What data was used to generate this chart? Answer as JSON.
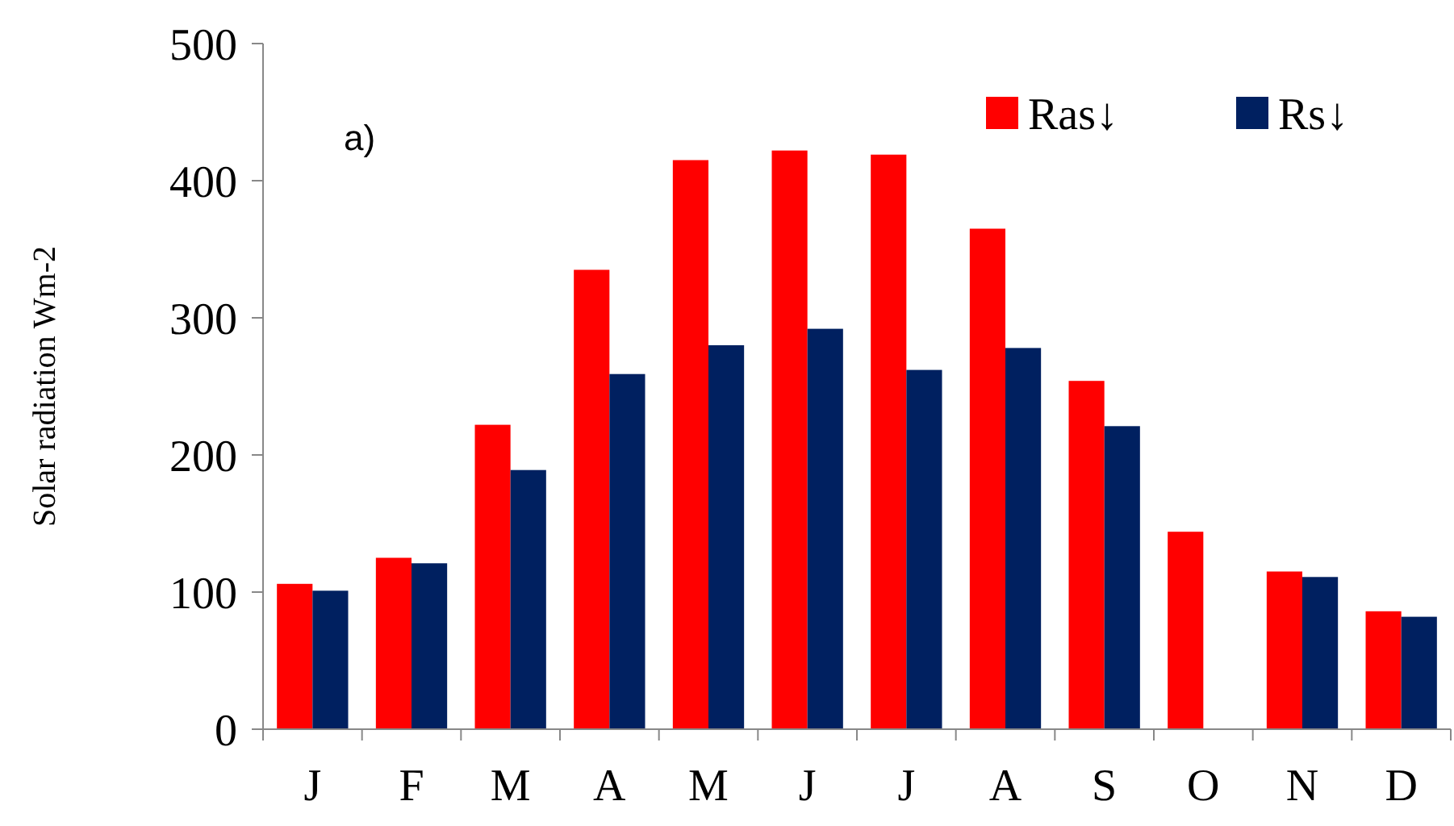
{
  "chart_data": {
    "type": "bar",
    "ylabel": "Solar radiation Wm-2",
    "annotations": [
      "a)"
    ],
    "categories": [
      "J",
      "F",
      "M",
      "A",
      "M",
      "J",
      "J",
      "A",
      "S",
      "O",
      "N",
      "D"
    ],
    "series": [
      {
        "name": "Ras↓",
        "color": "#ff0000",
        "values": [
          106,
          125,
          222,
          335,
          415,
          422,
          419,
          365,
          254,
          144,
          115,
          86
        ]
      },
      {
        "name": "Rs↓",
        "color": "#002060",
        "values": [
          101,
          121,
          189,
          259,
          280,
          292,
          262,
          278,
          221,
          null,
          111,
          82
        ]
      }
    ],
    "ylim": [
      0,
      500
    ],
    "yticks": [
      0,
      100,
      200,
      300,
      400,
      500
    ],
    "grid": false,
    "legend": "top right"
  }
}
